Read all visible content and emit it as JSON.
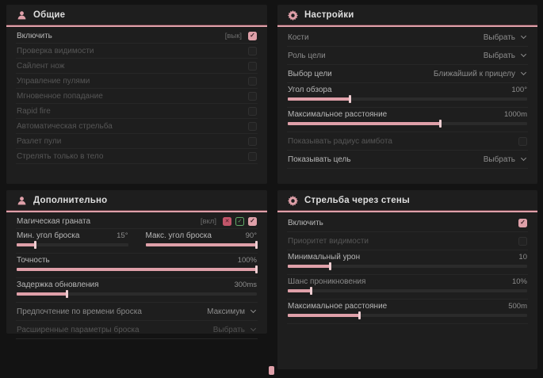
{
  "colors": {
    "accent": "#dfa0a9",
    "panel": "#1e1e1e",
    "background": "#131313"
  },
  "glyphs": {
    "check": "✓",
    "cross": "✕"
  },
  "footer": {
    "marker_icon": "pink-marker-icon"
  },
  "panels": {
    "general": {
      "title": "Общие",
      "icon": "people-icon",
      "rows": [
        {
          "label": "Включить",
          "hotkey": "[вык]",
          "checked": true
        },
        {
          "label": "Проверка видимости",
          "checked": false
        },
        {
          "label": "Сайлент нож",
          "checked": false
        },
        {
          "label": "Управление пулями",
          "checked": false
        },
        {
          "label": "Мгновенное попадание",
          "checked": false
        },
        {
          "label": "Rapid fire",
          "checked": false
        },
        {
          "label": "Автоматическая стрельба",
          "checked": false
        },
        {
          "label": "Разлет пули",
          "checked": false
        },
        {
          "label": "Стрелять только в тело",
          "checked": false
        }
      ]
    },
    "settings": {
      "title": "Настройки",
      "icon": "gear-icon",
      "rows": [
        {
          "label": "Кости",
          "value": "Выбрать"
        },
        {
          "label": "Роль цели",
          "value": "Выбрать"
        },
        {
          "label": "Выбор цели",
          "value": "Ближайший к прицелу"
        },
        {
          "label": "Угол обзора",
          "value": "100°",
          "percent": 26
        },
        {
          "label": "Максимальное расстояние",
          "value": "1000m",
          "percent": 64
        },
        {
          "label": "Показывать радиус аимбота",
          "checked": false
        },
        {
          "label": "Показывать цель",
          "value": "Выбрать"
        }
      ]
    },
    "additional": {
      "title": "Дополнительно",
      "icon": "people-icon",
      "rows": [
        {
          "label": "Магическая граната",
          "hotkey": "[вкл]",
          "checked": true,
          "icons": [
            "red-toggle-icon",
            "green-toggle-icon"
          ]
        },
        {
          "label": "Мин. угол броска",
          "value": "15°",
          "percent": 17
        },
        {
          "label": "Макс. угол броска",
          "value": "90°",
          "percent": 100
        },
        {
          "label": "Точность",
          "value": "100%",
          "percent": 100
        },
        {
          "label": "Задержка обновления",
          "value": "300ms",
          "percent": 21
        },
        {
          "label": "Предпочтение по времени броска",
          "value": "Максимум"
        },
        {
          "label": "Расширенные параметры броска",
          "value": "Выбрать"
        }
      ]
    },
    "walls": {
      "title": "Стрельба через стены",
      "icon": "gear-icon",
      "rows": [
        {
          "label": "Включить",
          "checked": true
        },
        {
          "label": "Приоритет видимости",
          "checked": false
        },
        {
          "label": "Минимальный урон",
          "value": "10",
          "percent": 18
        },
        {
          "label": "Шанс проникновения",
          "value": "10%",
          "percent": 10
        },
        {
          "label": "Максимальное расстояние",
          "value": "500m",
          "percent": 30
        }
      ]
    }
  }
}
